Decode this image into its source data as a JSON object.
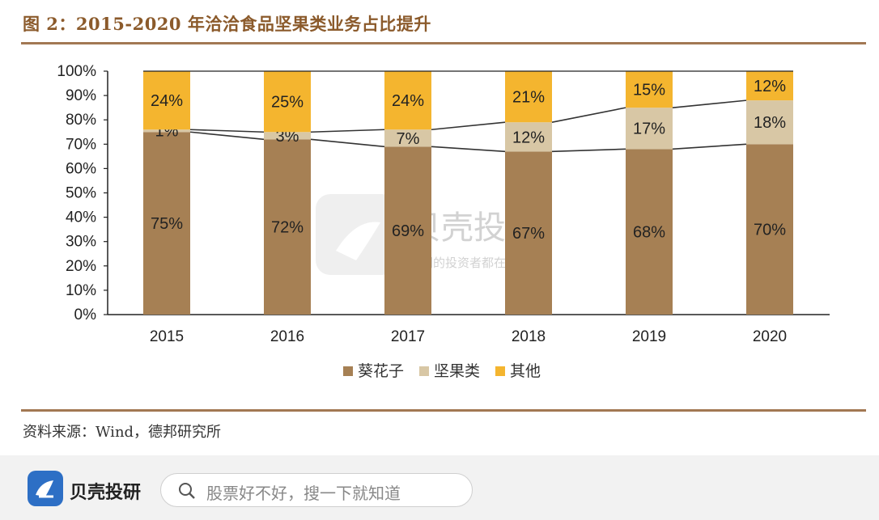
{
  "title": "图 2：2015-2020 年洽洽食品坚果类业务占比提升",
  "source": "资料来源：Wind，德邦研究所",
  "watermark": {
    "brand": "贝壳投研",
    "slogan": "聪明的投资者都在关注"
  },
  "footer": {
    "brand": "贝壳投研",
    "search_placeholder": "股票好不好，搜一下就知道",
    "icons": [
      "shell-logo-icon",
      "search-icon"
    ]
  },
  "colors": {
    "accent": "#a27853",
    "title": "#8b5a2b",
    "sunflower": "#a68054",
    "nuts": "#d8c7a5",
    "other": "#f4b52f"
  },
  "chart_data": {
    "type": "bar",
    "stacked": true,
    "categories": [
      "2015",
      "2016",
      "2017",
      "2018",
      "2019",
      "2020"
    ],
    "series": [
      {
        "name": "葵花子",
        "values": [
          75,
          72,
          69,
          67,
          68,
          70
        ],
        "labels": [
          "75%",
          "72%",
          "69%",
          "67%",
          "68%",
          "70%"
        ]
      },
      {
        "name": "坚果类",
        "values": [
          1,
          3,
          7,
          12,
          17,
          18
        ],
        "labels": [
          "1%",
          "3%",
          "7%",
          "12%",
          "17%",
          "18%"
        ]
      },
      {
        "name": "其他",
        "values": [
          24,
          25,
          24,
          21,
          15,
          12
        ],
        "labels": [
          "24%",
          "25%",
          "24%",
          "21%",
          "15%",
          "12%"
        ]
      }
    ],
    "yticks": [
      "0%",
      "10%",
      "20%",
      "30%",
      "40%",
      "50%",
      "60%",
      "70%",
      "80%",
      "90%",
      "100%"
    ],
    "ylim": [
      0,
      100
    ],
    "grid": false,
    "legend": "bottom",
    "series_lines": true
  }
}
